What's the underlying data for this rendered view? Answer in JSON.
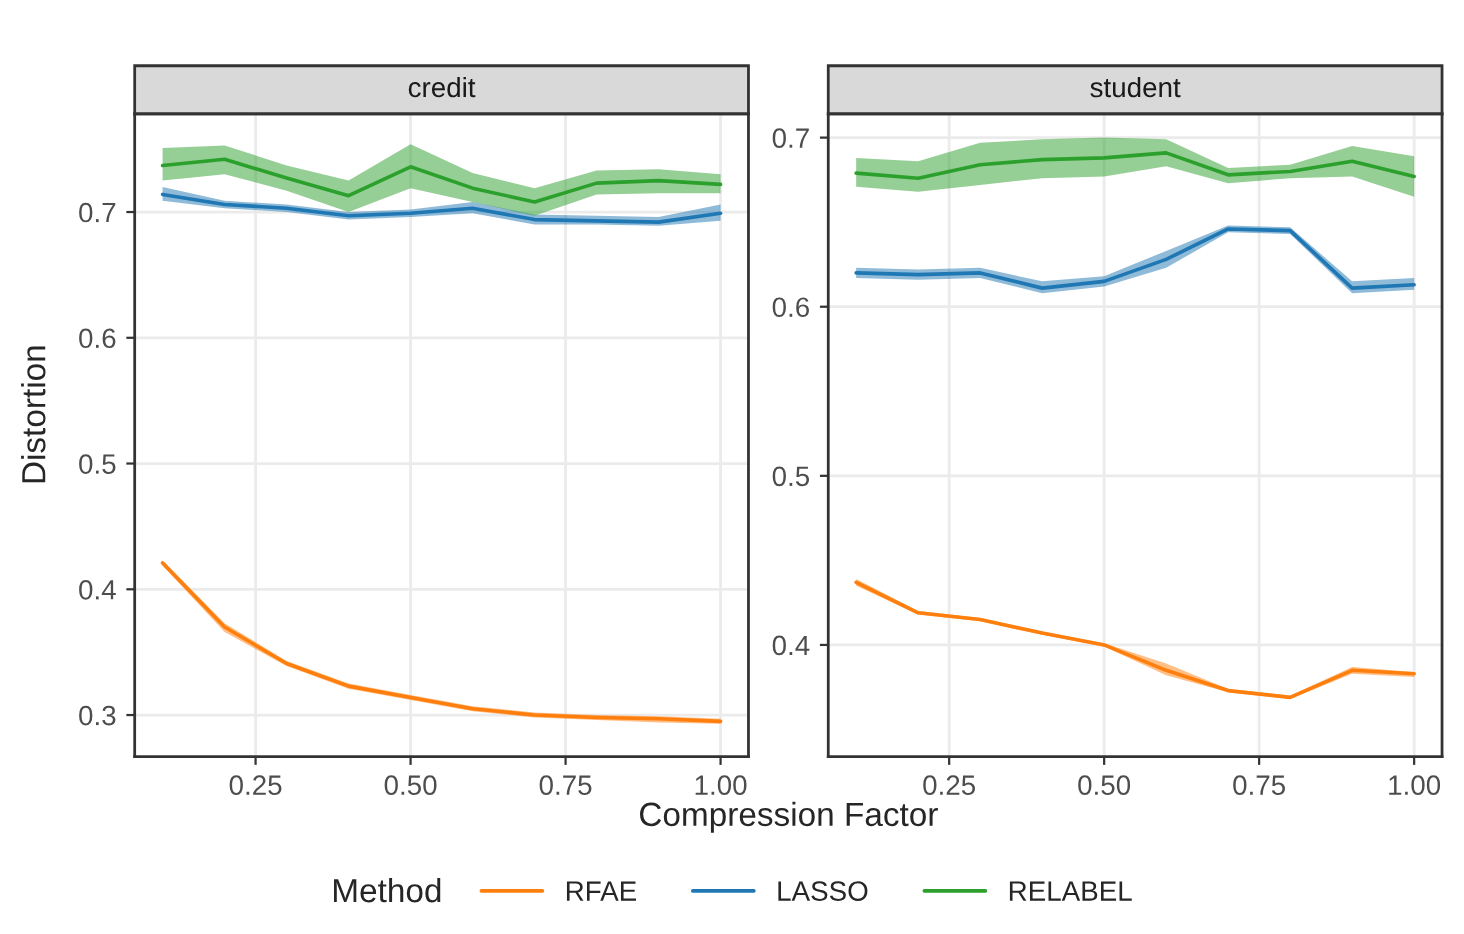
{
  "chart_data": [
    {
      "type": "line",
      "title": "credit",
      "xlabel": "Compression Factor",
      "ylabel": "Distortion",
      "legend_title": "Method",
      "legend": "bottom",
      "grid": true,
      "x": [
        0.1,
        0.2,
        0.3,
        0.4,
        0.5,
        0.6,
        0.7,
        0.8,
        0.9,
        1.0
      ],
      "xlim": [
        0.055,
        1.045
      ],
      "xticks": [
        {
          "value": 0.25,
          "label": "0.25"
        },
        {
          "value": 0.5,
          "label": "0.50"
        },
        {
          "value": 0.75,
          "label": "0.75"
        },
        {
          "value": 1.0,
          "label": "1.00"
        }
      ],
      "ylim": [
        0.267,
        0.778
      ],
      "yticks": [
        0.3,
        0.4,
        0.5,
        0.6,
        0.7
      ],
      "series": [
        {
          "name": "RFAE",
          "color": "#ff7f0e",
          "values": [
            0.421,
            0.37,
            0.341,
            0.323,
            0.314,
            0.305,
            0.3,
            0.298,
            0.297,
            0.295
          ],
          "lower": [
            0.419,
            0.366,
            0.339,
            0.321,
            0.312,
            0.303,
            0.298,
            0.296,
            0.294,
            0.293
          ],
          "upper": [
            0.423,
            0.373,
            0.343,
            0.325,
            0.316,
            0.307,
            0.302,
            0.3,
            0.299,
            0.297
          ]
        },
        {
          "name": "LASSO",
          "color": "#1f77b4",
          "values": [
            0.714,
            0.706,
            0.703,
            0.697,
            0.699,
            0.703,
            0.694,
            0.693,
            0.692,
            0.699
          ],
          "lower": [
            0.709,
            0.703,
            0.7,
            0.694,
            0.696,
            0.699,
            0.69,
            0.69,
            0.689,
            0.693
          ],
          "upper": [
            0.72,
            0.709,
            0.706,
            0.7,
            0.702,
            0.708,
            0.698,
            0.697,
            0.696,
            0.706
          ]
        },
        {
          "name": "RELABEL",
          "color": "#2ca02c",
          "values": [
            0.737,
            0.742,
            0.727,
            0.713,
            0.736,
            0.719,
            0.708,
            0.723,
            0.725,
            0.722
          ],
          "lower": [
            0.725,
            0.73,
            0.717,
            0.7,
            0.719,
            0.708,
            0.697,
            0.714,
            0.715,
            0.715
          ],
          "upper": [
            0.751,
            0.753,
            0.737,
            0.725,
            0.754,
            0.731,
            0.719,
            0.733,
            0.734,
            0.73
          ]
        }
      ]
    },
    {
      "type": "line",
      "title": "student",
      "legend": false,
      "grid": true,
      "x": [
        0.1,
        0.2,
        0.3,
        0.4,
        0.5,
        0.6,
        0.7,
        0.8,
        0.9,
        1.0
      ],
      "xlim": [
        0.055,
        1.045
      ],
      "xticks": [
        {
          "value": 0.25,
          "label": "0.25"
        },
        {
          "value": 0.5,
          "label": "0.50"
        },
        {
          "value": 0.75,
          "label": "0.75"
        },
        {
          "value": 1.0,
          "label": "1.00"
        }
      ],
      "ylim": [
        0.334,
        0.714
      ],
      "yticks": [
        0.4,
        0.5,
        0.6,
        0.7
      ],
      "series": [
        {
          "color": "#ff7f0e",
          "values": [
            0.437,
            0.419,
            0.415,
            0.407,
            0.4,
            0.385,
            0.373,
            0.369,
            0.385,
            0.383
          ],
          "lower": [
            0.435,
            0.418,
            0.414,
            0.406,
            0.399,
            0.382,
            0.372,
            0.368,
            0.383,
            0.381
          ],
          "upper": [
            0.439,
            0.42,
            0.416,
            0.408,
            0.401,
            0.389,
            0.374,
            0.37,
            0.387,
            0.384
          ]
        },
        {
          "color": "#1f77b4",
          "values": [
            0.62,
            0.619,
            0.62,
            0.611,
            0.615,
            0.628,
            0.646,
            0.645,
            0.611,
            0.613
          ],
          "lower": [
            0.617,
            0.616,
            0.617,
            0.608,
            0.612,
            0.623,
            0.644,
            0.643,
            0.608,
            0.61
          ],
          "upper": [
            0.623,
            0.622,
            0.623,
            0.615,
            0.618,
            0.633,
            0.648,
            0.647,
            0.615,
            0.617
          ]
        },
        {
          "color": "#2ca02c",
          "values": [
            0.679,
            0.676,
            0.684,
            0.687,
            0.688,
            0.691,
            0.678,
            0.68,
            0.686,
            0.677
          ],
          "lower": [
            0.671,
            0.668,
            0.672,
            0.676,
            0.677,
            0.683,
            0.673,
            0.676,
            0.677,
            0.665
          ],
          "upper": [
            0.688,
            0.686,
            0.697,
            0.699,
            0.7,
            0.699,
            0.682,
            0.684,
            0.695,
            0.689
          ]
        }
      ]
    }
  ]
}
